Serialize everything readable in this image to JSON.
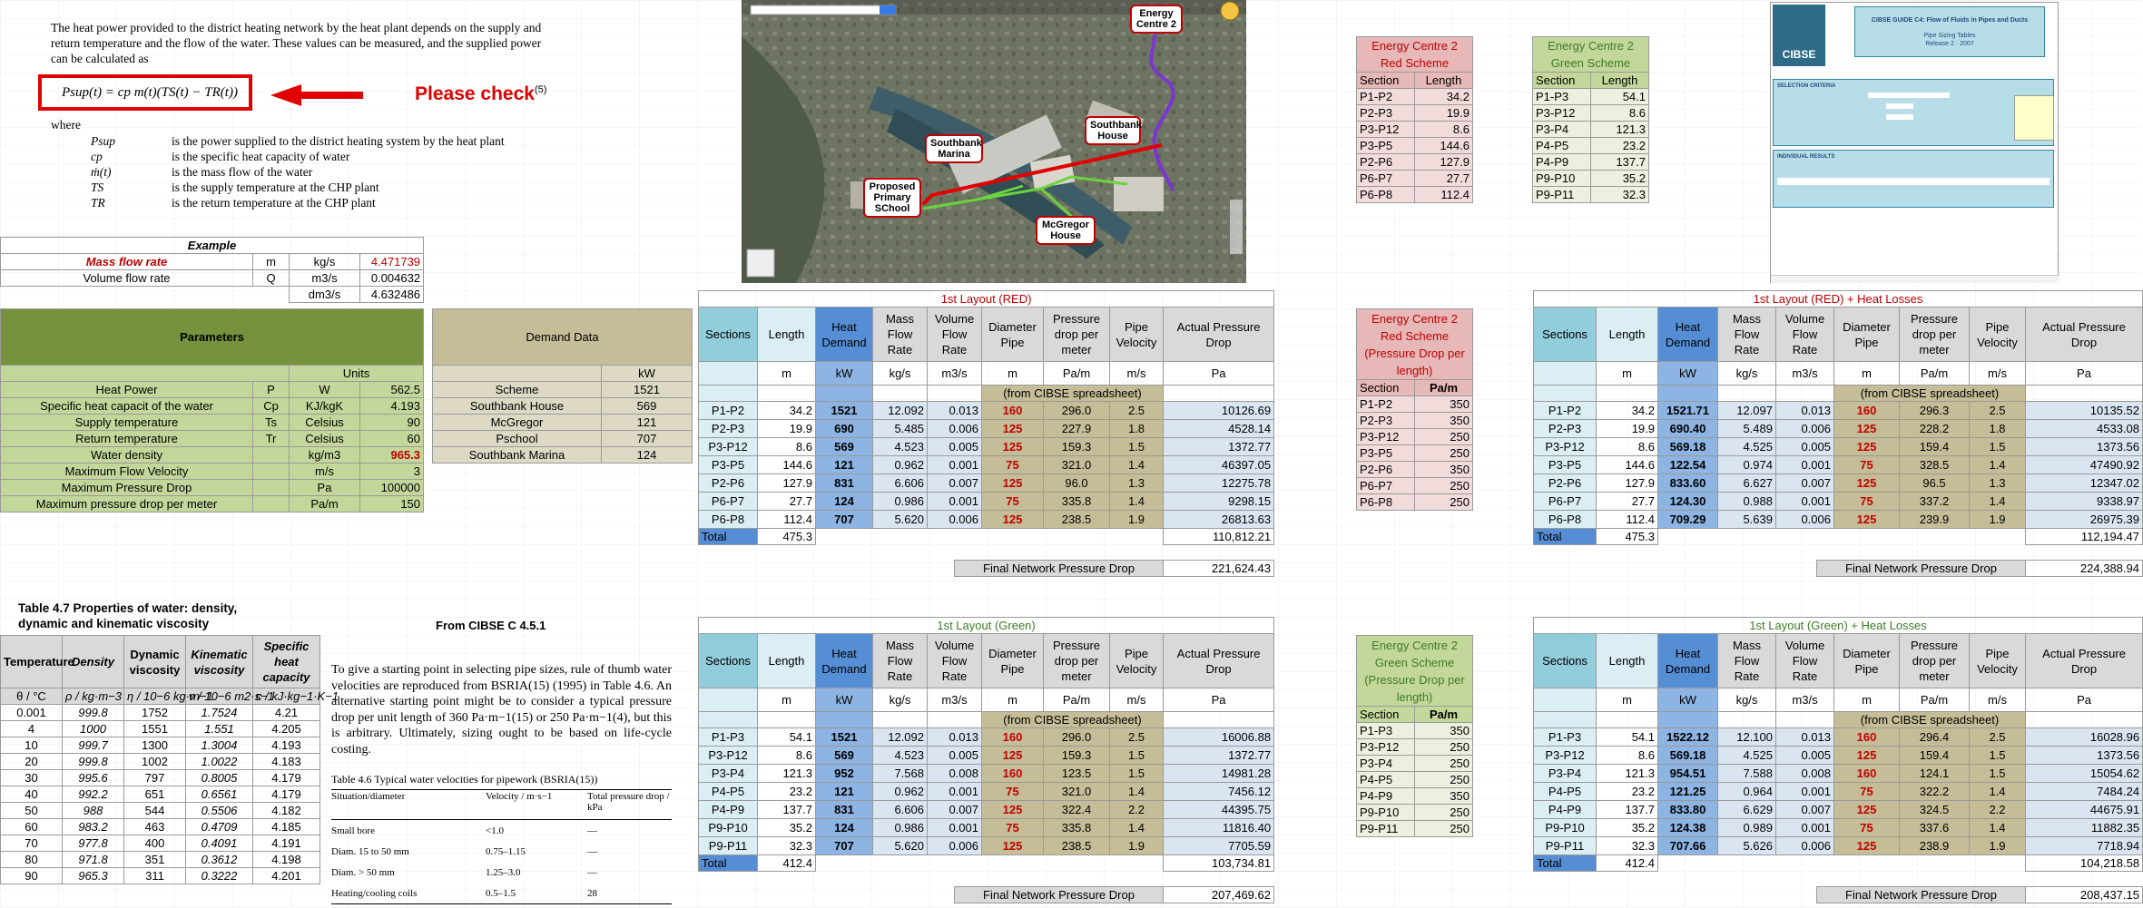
{
  "doc_text": {
    "intro": "The heat power provided to the district heating network by the heat plant depends on the supply and return temperature and the flow of the water. These values can be measured, and the supplied power can be calculated as",
    "formula": "Psup(t) = cp m(t)(TS(t) − TR(t))",
    "please_check": "Please check",
    "please_check_ref": "(5)",
    "where": "where",
    "defs": [
      {
        "sym": "Psup",
        "desc": "is the power supplied to the district heating system by the heat plant"
      },
      {
        "sym": "cp",
        "desc": "is the specific heat capacity of water"
      },
      {
        "sym": "ṁ(t)",
        "desc": "is the mass flow of the water"
      },
      {
        "sym": "TS",
        "desc": "is the supply temperature at the CHP plant"
      },
      {
        "sym": "TR",
        "desc": "is the return temperature at the CHP plant"
      }
    ]
  },
  "example": {
    "title": "Example",
    "rows": [
      {
        "name": "Mass flow rate",
        "sym": "m",
        "unit": "kg/s",
        "value": "4.471739"
      },
      {
        "name": "Volume flow rate",
        "sym": "Q",
        "unit": "m3/s",
        "value": "0.004632"
      },
      {
        "name": "",
        "sym": "",
        "unit": "dm3/s",
        "value": "4.632486"
      }
    ]
  },
  "parameters": {
    "title": "Parameters",
    "units_label": "Units",
    "rows": [
      {
        "name": "Heat Power",
        "sym": "P",
        "unit": "W",
        "value": "562.5"
      },
      {
        "name": "Specific heat capacit of the water",
        "sym": "Cp",
        "unit": "KJ/kgK",
        "value": "4.193"
      },
      {
        "name": "Supply temperature",
        "sym": "Ts",
        "unit": "Celsius",
        "value": "90"
      },
      {
        "name": "Return temperature",
        "sym": "Tr",
        "unit": "Celsius",
        "value": "60"
      },
      {
        "name": "Water density",
        "sym": "",
        "unit": "kg/m3",
        "value": "965.3"
      },
      {
        "name": "Maximum Flow Velocity",
        "sym": "",
        "unit": "m/s",
        "value": "3"
      },
      {
        "name": "Maximum Pressure Drop",
        "sym": "",
        "unit": "Pa",
        "value": "100000"
      },
      {
        "name": "Maximum pressure drop per meter",
        "sym": "",
        "unit": "Pa/m",
        "value": "150"
      }
    ]
  },
  "demand": {
    "title": "Demand Data",
    "unit": "kW",
    "rows": [
      {
        "name": "Scheme",
        "value": "1521"
      },
      {
        "name": "Southbank House",
        "value": "569"
      },
      {
        "name": "McGregor",
        "value": "121"
      },
      {
        "name": "Pschool",
        "value": "707"
      },
      {
        "name": "Southbank Marina",
        "value": "124"
      }
    ]
  },
  "water_table": {
    "title": "Table 4.7 Properties of water: density, dynamic and kinematic viscosity",
    "headers": [
      "Temperature",
      "Density",
      "Dynamic viscosity",
      "Kinematic viscosity",
      "Specific heat capacity"
    ],
    "units": [
      "θ / °C",
      "ρ / kg·m−3",
      "η / 10−6 kg·m−1",
      "ν / 10−6 m2·s−1",
      "c / kJ·kg−1·K−1"
    ],
    "rows": [
      [
        "0.001",
        "999.8",
        "1752",
        "1.7524",
        "4.21"
      ],
      [
        "4",
        "1000",
        "1551",
        "1.551",
        "4.205"
      ],
      [
        "10",
        "999.7",
        "1300",
        "1.3004",
        "4.193"
      ],
      [
        "20",
        "999.8",
        "1002",
        "1.0022",
        "4.183"
      ],
      [
        "30",
        "995.6",
        "797",
        "0.8005",
        "4.179"
      ],
      [
        "40",
        "992.2",
        "651",
        "0.6561",
        "4.179"
      ],
      [
        "50",
        "988",
        "544",
        "0.5506",
        "4.182"
      ],
      [
        "60",
        "983.2",
        "463",
        "0.4709",
        "4.185"
      ],
      [
        "70",
        "977.8",
        "400",
        "0.4091",
        "4.191"
      ],
      [
        "80",
        "971.8",
        "351",
        "0.3612",
        "4.198"
      ],
      [
        "90",
        "965.3",
        "311",
        "0.3222",
        "4.201"
      ]
    ]
  },
  "cibse_note": "From CIBSE C 4.5.1",
  "cibse_text": "To give a starting point in selecting pipe sizes, rule of thumb water velocities are reproduced from BSRIA(15) (1995) in Table 4.6. An alternative starting point might be to consider a typical pressure drop per unit length of 360 Pa·m−1(15) or 250 Pa·m−1(4), but this is arbitrary. Ultimately, sizing ought to be based on life-cycle costing.",
  "table46": {
    "title": "Table 4.6 Typical water velocities for pipework (BSRIA(15))",
    "headers": [
      "Situation/diameter",
      "Velocity / m·s−1",
      "Total pressure drop / kPa"
    ],
    "rows": [
      [
        "Small bore",
        "<1.0",
        "—"
      ],
      [
        "Diam. 15 to 50 mm",
        "0.75–1.15",
        "—"
      ],
      [
        "Diam. > 50 mm",
        "1.25–3.0",
        "—"
      ],
      [
        "Heating/cooling coils",
        "0.5–1.5",
        "28"
      ]
    ]
  },
  "map": {
    "labels": [
      "Energy Centre 2",
      "Southbank Marina",
      "Southbank House",
      "Proposed Primary SChool",
      "McGregor House"
    ]
  },
  "ec_red": {
    "title": "Energy Centre 2 Red Scheme",
    "col1": "Section",
    "col2": "Length",
    "rows": [
      [
        "P1-P2",
        "34.2"
      ],
      [
        "P2-P3",
        "19.9"
      ],
      [
        "P3-P12",
        "8.6"
      ],
      [
        "P3-P5",
        "144.6"
      ],
      [
        "P2-P6",
        "127.9"
      ],
      [
        "P6-P7",
        "27.7"
      ],
      [
        "P6-P8",
        "112.4"
      ]
    ]
  },
  "ec_green": {
    "title": "Energy Centre 2 Green Scheme",
    "col1": "Section",
    "col2": "Length",
    "rows": [
      [
        "P1-P3",
        "54.1"
      ],
      [
        "P3-P12",
        "8.6"
      ],
      [
        "P3-P4",
        "121.3"
      ],
      [
        "P4-P5",
        "23.2"
      ],
      [
        "P4-P9",
        "137.7"
      ],
      [
        "P9-P10",
        "35.2"
      ],
      [
        "P9-P11",
        "32.3"
      ]
    ]
  },
  "ec_red_pd": {
    "title": "Energy Centre 2 Red Scheme (Pressure Drop per length)",
    "col1": "Section",
    "col2": "Pa/m",
    "rows": [
      [
        "P1-P2",
        "350"
      ],
      [
        "P2-P3",
        "350"
      ],
      [
        "P3-P12",
        "250"
      ],
      [
        "P3-P5",
        "250"
      ],
      [
        "P2-P6",
        "350"
      ],
      [
        "P6-P7",
        "250"
      ],
      [
        "P6-P8",
        "250"
      ]
    ]
  },
  "ec_green_pd": {
    "title": "Energy Centre 2 Green Scheme (Pressure Drop per length)",
    "col1": "Section",
    "col2": "Pa/m",
    "rows": [
      [
        "P1-P3",
        "350"
      ],
      [
        "P3-P12",
        "250"
      ],
      [
        "P3-P4",
        "250"
      ],
      [
        "P4-P5",
        "250"
      ],
      [
        "P4-P9",
        "350"
      ],
      [
        "P9-P10",
        "250"
      ],
      [
        "P9-P11",
        "250"
      ]
    ]
  },
  "layout_headers": [
    "Sections",
    "Length",
    "Heat Demand",
    "Mass Flow Rate",
    "Volume Flow Rate",
    "Diameter Pipe",
    "Pressure drop per meter",
    "Pipe Velocity",
    "Actual Pressure Drop"
  ],
  "layout_headers_hl": [
    "Sections",
    "Length",
    "Heat Demand",
    "Mass Flow Rate",
    "Volume Flow Rate",
    "Diameter Pipe",
    "Pressure drop per meter",
    "Pipe Velocity",
    "Actual Pressure Drop"
  ],
  "layout_units": [
    "",
    "m",
    "kW",
    "kg/s",
    "m3/s",
    "m",
    "Pa/m",
    "m/s",
    "Pa"
  ],
  "from_cibse": "(from CIBSE spreadsheet)",
  "total_label": "Total",
  "final_label": "Final Network Pressure Drop",
  "layout_red": {
    "title": "1st Layout (RED)",
    "rows": [
      [
        "P1-P2",
        "34.2",
        "1521",
        "12.092",
        "0.013",
        "160",
        "296.0",
        "2.5",
        "10126.69"
      ],
      [
        "P2-P3",
        "19.9",
        "690",
        "5.485",
        "0.006",
        "125",
        "227.9",
        "1.8",
        "4528.14"
      ],
      [
        "P3-P12",
        "8.6",
        "569",
        "4.523",
        "0.005",
        "125",
        "159.3",
        "1.5",
        "1372.77"
      ],
      [
        "P3-P5",
        "144.6",
        "121",
        "0.962",
        "0.001",
        "75",
        "321.0",
        "1.4",
        "46397.05"
      ],
      [
        "P2-P6",
        "127.9",
        "831",
        "6.606",
        "0.007",
        "125",
        "96.0",
        "1.3",
        "12275.78"
      ],
      [
        "P6-P7",
        "27.7",
        "124",
        "0.986",
        "0.001",
        "75",
        "335.8",
        "1.4",
        "9298.15"
      ],
      [
        "P6-P8",
        "112.4",
        "707",
        "5.620",
        "0.006",
        "125",
        "238.5",
        "1.9",
        "26813.63"
      ]
    ],
    "total_length": "475.3",
    "total_pd": "110,812.21",
    "final": "221,624.43"
  },
  "layout_green": {
    "title": "1st Layout (Green)",
    "rows": [
      [
        "P1-P3",
        "54.1",
        "1521",
        "12.092",
        "0.013",
        "160",
        "296.0",
        "2.5",
        "16006.88"
      ],
      [
        "P3-P12",
        "8.6",
        "569",
        "4.523",
        "0.005",
        "125",
        "159.3",
        "1.5",
        "1372.77"
      ],
      [
        "P3-P4",
        "121.3",
        "952",
        "7.568",
        "0.008",
        "160",
        "123.5",
        "1.5",
        "14981.28"
      ],
      [
        "P4-P5",
        "23.2",
        "121",
        "0.962",
        "0.001",
        "75",
        "321.0",
        "1.4",
        "7456.12"
      ],
      [
        "P4-P9",
        "137.7",
        "831",
        "6.606",
        "0.007",
        "125",
        "322.4",
        "2.2",
        "44395.75"
      ],
      [
        "P9-P10",
        "35.2",
        "124",
        "0.986",
        "0.001",
        "75",
        "335.8",
        "1.4",
        "11816.40"
      ],
      [
        "P9-P11",
        "32.3",
        "707",
        "5.620",
        "0.006",
        "125",
        "238.5",
        "1.9",
        "7705.59"
      ]
    ],
    "total_length": "412.4",
    "total_pd": "103,734.81",
    "final": "207,469.62"
  },
  "layout_red_hl": {
    "title": "1st Layout (RED) + Heat Losses",
    "rows": [
      [
        "P1-P2",
        "34.2",
        "1521.71",
        "12.097",
        "0.013",
        "160",
        "296.3",
        "2.5",
        "10135.52"
      ],
      [
        "P2-P3",
        "19.9",
        "690.40",
        "5.489",
        "0.006",
        "125",
        "228.2",
        "1.8",
        "4533.08"
      ],
      [
        "P3-P12",
        "8.6",
        "569.18",
        "4.525",
        "0.005",
        "125",
        "159.4",
        "1.5",
        "1373.56"
      ],
      [
        "P3-P5",
        "144.6",
        "122.54",
        "0.974",
        "0.001",
        "75",
        "328.5",
        "1.4",
        "47490.92"
      ],
      [
        "P2-P6",
        "127.9",
        "833.60",
        "6.627",
        "0.007",
        "125",
        "96.5",
        "1.3",
        "12347.02"
      ],
      [
        "P6-P7",
        "27.7",
        "124.30",
        "0.988",
        "0.001",
        "75",
        "337.2",
        "1.4",
        "9338.97"
      ],
      [
        "P6-P8",
        "112.4",
        "709.29",
        "5.639",
        "0.006",
        "125",
        "239.9",
        "1.9",
        "26975.39"
      ]
    ],
    "total_length": "475.3",
    "total_pd": "112,194.47",
    "final": "224,388.94"
  },
  "layout_green_hl": {
    "title": "1st Layout (Green) + Heat Losses",
    "rows": [
      [
        "P1-P3",
        "54.1",
        "1522.12",
        "12.100",
        "0.013",
        "160",
        "296.4",
        "2.5",
        "16028.96"
      ],
      [
        "P3-P12",
        "8.6",
        "569.18",
        "4.525",
        "0.005",
        "125",
        "159.4",
        "1.5",
        "1373.56"
      ],
      [
        "P3-P4",
        "121.3",
        "954.51",
        "7.588",
        "0.008",
        "160",
        "124.1",
        "1.5",
        "15054.62"
      ],
      [
        "P4-P5",
        "23.2",
        "121.25",
        "0.964",
        "0.001",
        "75",
        "322.2",
        "1.4",
        "7484.24"
      ],
      [
        "P4-P9",
        "137.7",
        "833.80",
        "6.629",
        "0.007",
        "125",
        "324.5",
        "2.2",
        "44675.91"
      ],
      [
        "P9-P10",
        "35.2",
        "124.38",
        "0.989",
        "0.001",
        "75",
        "337.6",
        "1.4",
        "11882.35"
      ],
      [
        "P9-P11",
        "32.3",
        "707.66",
        "5.626",
        "0.006",
        "125",
        "238.9",
        "1.9",
        "7718.94"
      ]
    ],
    "total_length": "412.4",
    "total_pd": "104,218.58",
    "final": "208,437.15"
  },
  "cibse_thumb": {
    "header": "CIBSE GUIDE C4: Flow of Fluids in Pipes and Ducts",
    "sub": "Pipe Sizing Tables",
    "version": "Release 2 · 2007",
    "sel_title": "SELECTION CRITERIA",
    "results_title": "INDIVIDUAL RESULTS",
    "logo": "CIBSE"
  }
}
